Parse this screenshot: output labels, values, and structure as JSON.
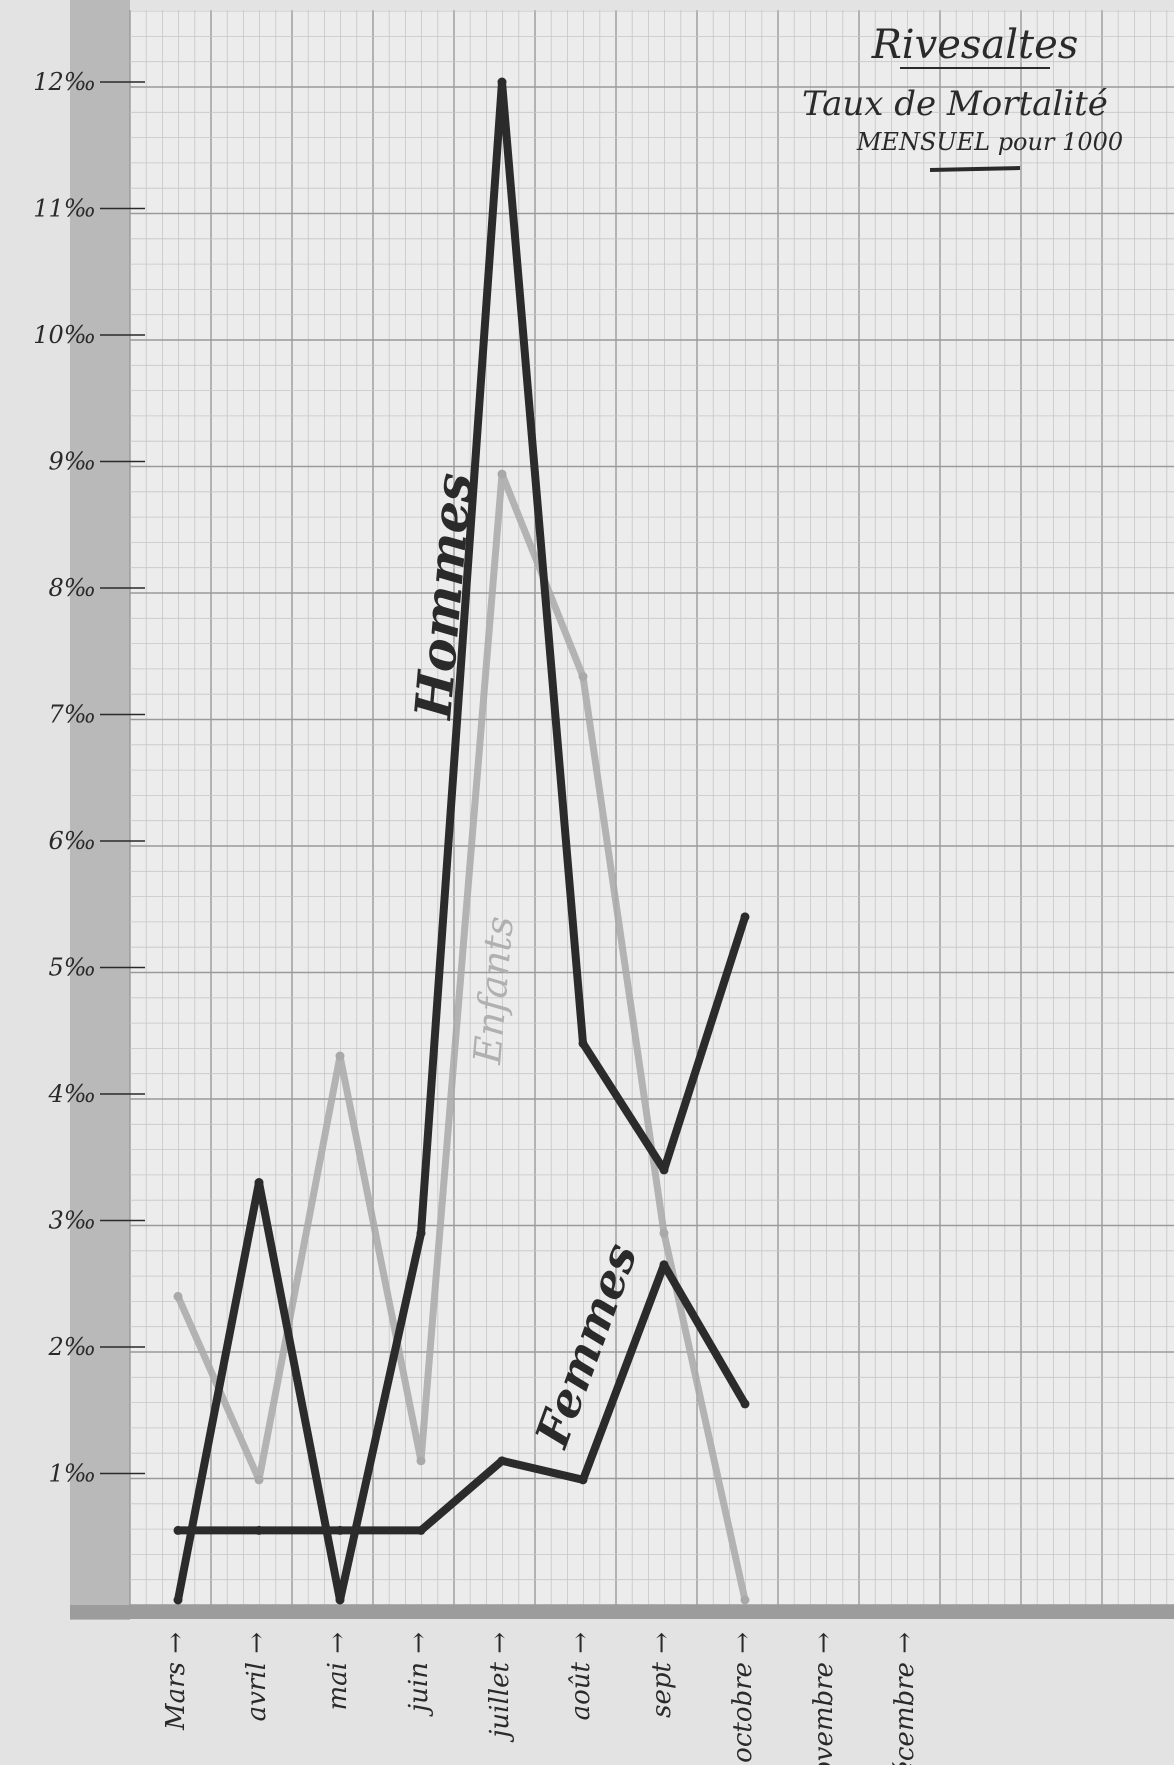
{
  "chart_data": {
    "type": "line",
    "title": "Rivesaltes",
    "subtitle": "Taux de Mortalité",
    "subtitle2": "MENSUEL pour 1000",
    "categories": [
      "Mars",
      "avril",
      "mai",
      "juin",
      "juillet",
      "août",
      "sept",
      "octobre",
      "novembre",
      "décembre"
    ],
    "y_ticks": [
      "1‰",
      "2‰",
      "3‰",
      "4‰",
      "5‰",
      "6‰",
      "7‰",
      "8‰",
      "9‰",
      "10‰",
      "11‰",
      "12‰"
    ],
    "ylim": [
      0,
      12.3
    ],
    "grid": true,
    "series": [
      {
        "name": "Hommes",
        "color": "#2b2b2b",
        "values": [
          0,
          3.3,
          0,
          2.9,
          12.0,
          4.4,
          3.4,
          5.4,
          null,
          null
        ]
      },
      {
        "name": "Femmes",
        "color": "#2b2b2b",
        "values": [
          0.55,
          0.55,
          0.55,
          0.55,
          1.1,
          0.95,
          2.65,
          1.55,
          null,
          null
        ]
      },
      {
        "name": "Enfants",
        "color": "#a9a9a9",
        "values": [
          2.4,
          0.95,
          4.3,
          1.1,
          8.9,
          7.3,
          2.9,
          0,
          null,
          null
        ]
      }
    ]
  }
}
